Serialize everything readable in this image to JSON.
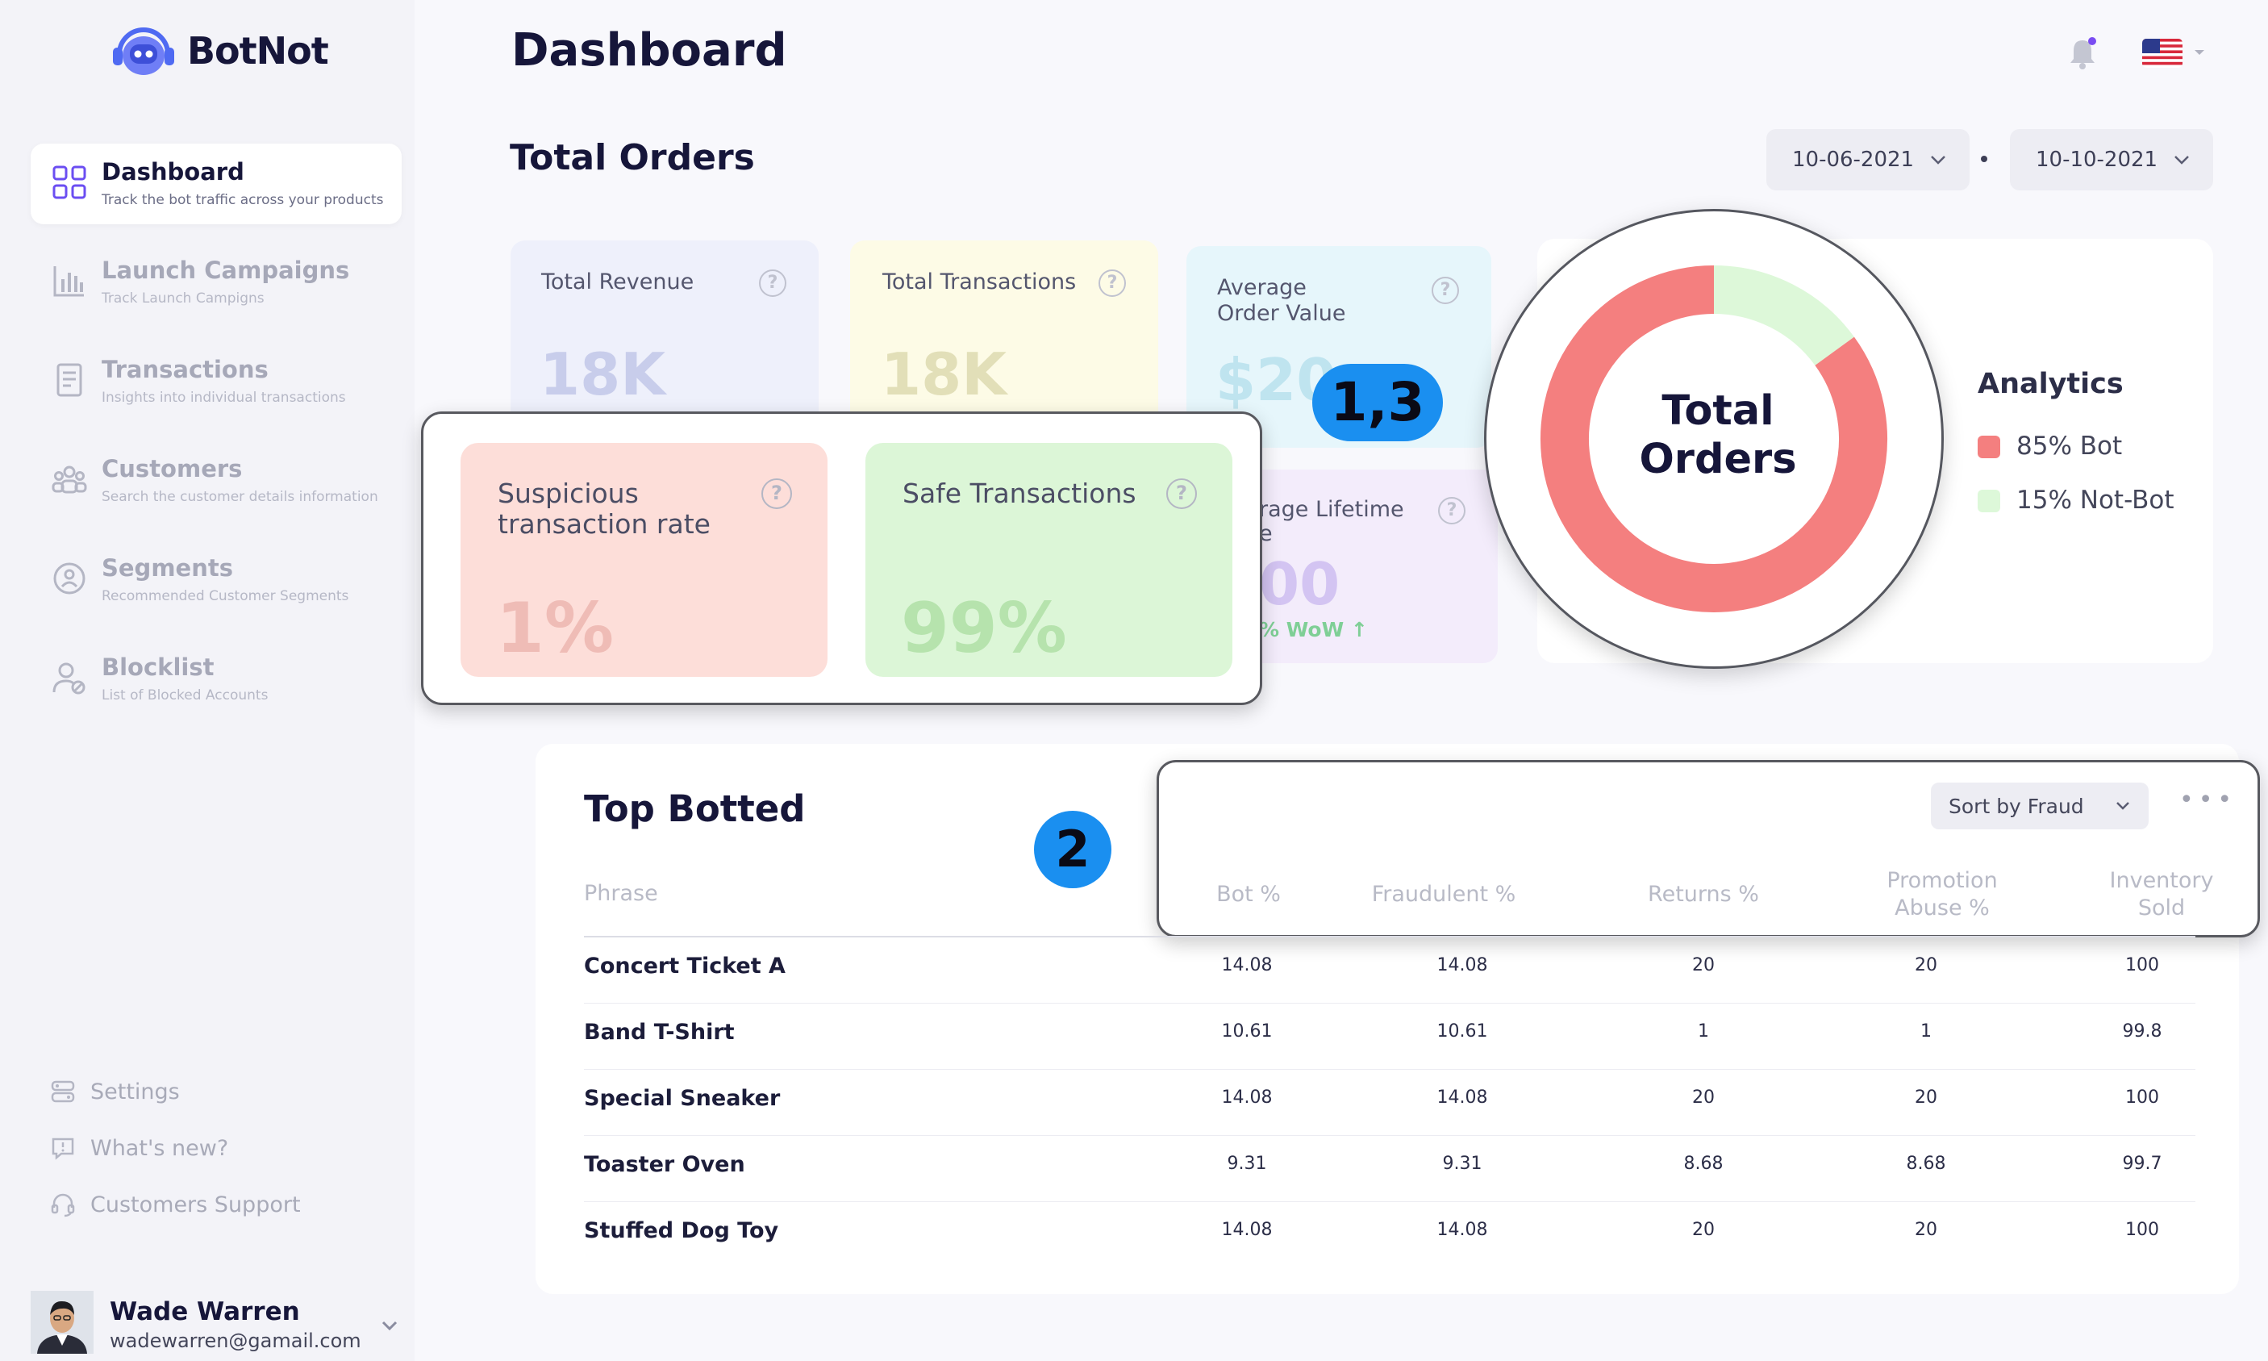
{
  "brand": {
    "name": "BotNot"
  },
  "sidebar": {
    "items": [
      {
        "label": "Dashboard",
        "sub": "Track the bot traffic across your products",
        "icon": "grid-icon",
        "active": true
      },
      {
        "label": "Launch Campaigns",
        "sub": "Track Launch Campigns",
        "icon": "bar-chart-icon"
      },
      {
        "label": "Transactions",
        "sub": "Insights into individual transactions",
        "icon": "document-icon"
      },
      {
        "label": "Customers",
        "sub": "Search the customer details information",
        "icon": "users-icon"
      },
      {
        "label": "Segments",
        "sub": "Recommended Customer Segments",
        "icon": "segment-icon"
      },
      {
        "label": "Blocklist",
        "sub": "List of Blocked Accounts",
        "icon": "user-block-icon"
      }
    ],
    "footer": [
      {
        "label": "Settings",
        "icon": "settings-icon"
      },
      {
        "label": "What's new?",
        "icon": "chat-alert-icon"
      },
      {
        "label": "Customers Support",
        "icon": "headset-icon"
      }
    ],
    "user": {
      "name": "Wade Warren",
      "email": "wadewarren@gamail.com"
    }
  },
  "header": {
    "title": "Dashboard"
  },
  "orders": {
    "title": "Total Orders",
    "date_from": "10-06-2021",
    "date_to": "10-10-2021",
    "cards": {
      "total_revenue": {
        "label": "Total Revenue",
        "value": "18K"
      },
      "total_transactions": {
        "label": "Total Transactions",
        "value": "18K"
      },
      "average_order_value": {
        "label_line1": "Average",
        "label_line2": "Order Value",
        "value": "$20"
      },
      "lifetime_value": {
        "label_line1": "rage Lifetime",
        "label_line2": "e",
        "value": "00",
        "wow": "% WoW ↑"
      }
    },
    "zoom_cards": {
      "suspicious": {
        "label_line1": "Suspicious",
        "label_line2": "transaction rate",
        "value": "1%"
      },
      "safe": {
        "label": "Safe Transactions",
        "value": "99%"
      }
    }
  },
  "analytics": {
    "donut_title_line1": "Total",
    "donut_title_line2": "Orders",
    "title": "Analytics",
    "legend": [
      {
        "label": "85% Bot",
        "color": "#f47f7f"
      },
      {
        "label": "15% Not-Bot",
        "color": "#ddf8d9"
      }
    ]
  },
  "chart_data": {
    "type": "pie",
    "categories": [
      "Bot",
      "Not-Bot"
    ],
    "values": [
      85,
      15
    ],
    "title": "Total Orders",
    "colors": [
      "#f47f7f",
      "#ddf8d9"
    ]
  },
  "annotations": {
    "badge_a": "1,3",
    "badge_b": "2"
  },
  "top_botted": {
    "title": "Top Botted",
    "sort_label": "Sort by Fraud",
    "columns": {
      "phrase": "Phrase",
      "bot": "Bot %",
      "fraudulent": "Fraudulent %",
      "returns": "Returns %",
      "promotion_l1": "Promotion",
      "promotion_l2": "Abuse %",
      "inventory_l1": "Inventory",
      "inventory_l2": "Sold"
    },
    "rows": [
      {
        "phrase": "Concert Ticket A",
        "bot": "14.08",
        "fraudulent": "14.08",
        "returns": "20",
        "promotion": "20",
        "inventory": "100"
      },
      {
        "phrase": "Band T-Shirt",
        "bot": "10.61",
        "fraudulent": "10.61",
        "returns": "1",
        "promotion": "1",
        "inventory": "99.8"
      },
      {
        "phrase": "Special Sneaker",
        "bot": "14.08",
        "fraudulent": "14.08",
        "returns": "20",
        "promotion": "20",
        "inventory": "100"
      },
      {
        "phrase": "Toaster Oven",
        "bot": "9.31",
        "fraudulent": "9.31",
        "returns": "8.68",
        "promotion": "8.68",
        "inventory": "99.7"
      },
      {
        "phrase": "Stuffed Dog Toy",
        "bot": "14.08",
        "fraudulent": "14.08",
        "returns": "20",
        "promotion": "20",
        "inventory": "100"
      }
    ]
  }
}
